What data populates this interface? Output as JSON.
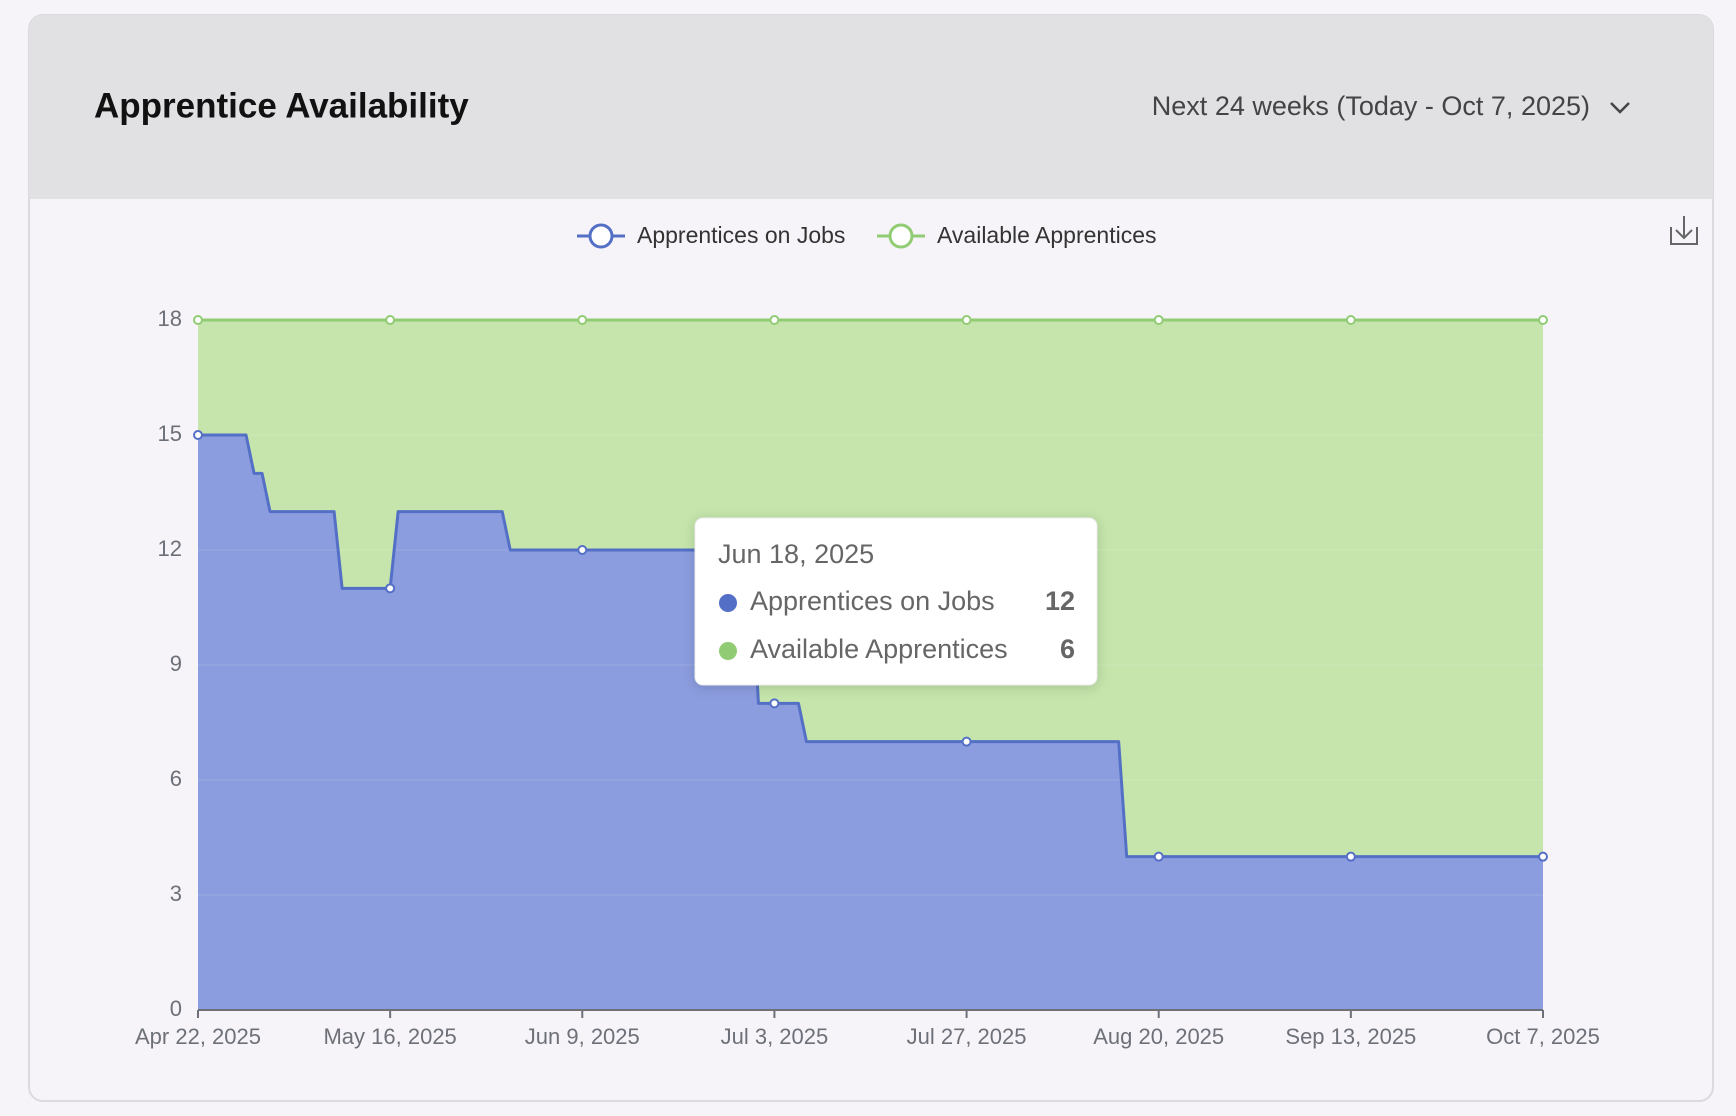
{
  "header": {
    "title": "Apprentice Availability",
    "range": "Next 24 weeks (Today - Oct 7, 2025)"
  },
  "chart_data": {
    "type": "stacked-area",
    "x": [
      "Apr 22, 2025",
      "Apr 28, 2025",
      "Apr 29, 2025",
      "Apr 30, 2025",
      "May 1, 2025",
      "May 9, 2025",
      "May 10, 2025",
      "May 16, 2025",
      "May 17, 2025",
      "May 30, 2025",
      "May 31, 2025",
      "Jun 9, 2025",
      "Jun 18, 2025",
      "Jun 30, 2025",
      "Jul 1, 2025",
      "Jul 3, 2025",
      "Jul 6, 2025",
      "Jul 7, 2025",
      "Jul 27, 2025",
      "Aug 15, 2025",
      "Aug 16, 2025",
      "Aug 20, 2025",
      "Sep 13, 2025",
      "Oct 7, 2025"
    ],
    "series": [
      {
        "name": "Apprentices on Jobs",
        "color": "#5470c6",
        "fill": "#8c9ddf",
        "values": [
          15,
          15,
          14,
          14,
          13,
          13,
          11,
          11,
          13,
          13,
          12,
          12,
          12,
          12,
          8,
          8,
          8,
          7,
          7,
          7,
          4,
          4,
          4,
          4
        ]
      },
      {
        "name": "Available Apprentices",
        "color": "#91cc75",
        "fill": "#c5e5ac",
        "values": [
          3,
          3,
          4,
          4,
          5,
          5,
          7,
          7,
          5,
          5,
          6,
          6,
          6,
          6,
          10,
          10,
          10,
          11,
          11,
          11,
          14,
          14,
          14,
          14
        ]
      }
    ],
    "xlim": [
      "Apr 22, 2025",
      "Oct 7, 2025"
    ],
    "xticks": [
      "Apr 22, 2025",
      "May 16, 2025",
      "Jun 9, 2025",
      "Jul 3, 2025",
      "Jul 27, 2025",
      "Aug 20, 2025",
      "Sep 13, 2025",
      "Oct 7, 2025"
    ],
    "ylim": [
      0,
      18
    ],
    "yticks": [
      0,
      3,
      6,
      9,
      12,
      15,
      18
    ],
    "grid": true,
    "tooltip_index": 12
  }
}
